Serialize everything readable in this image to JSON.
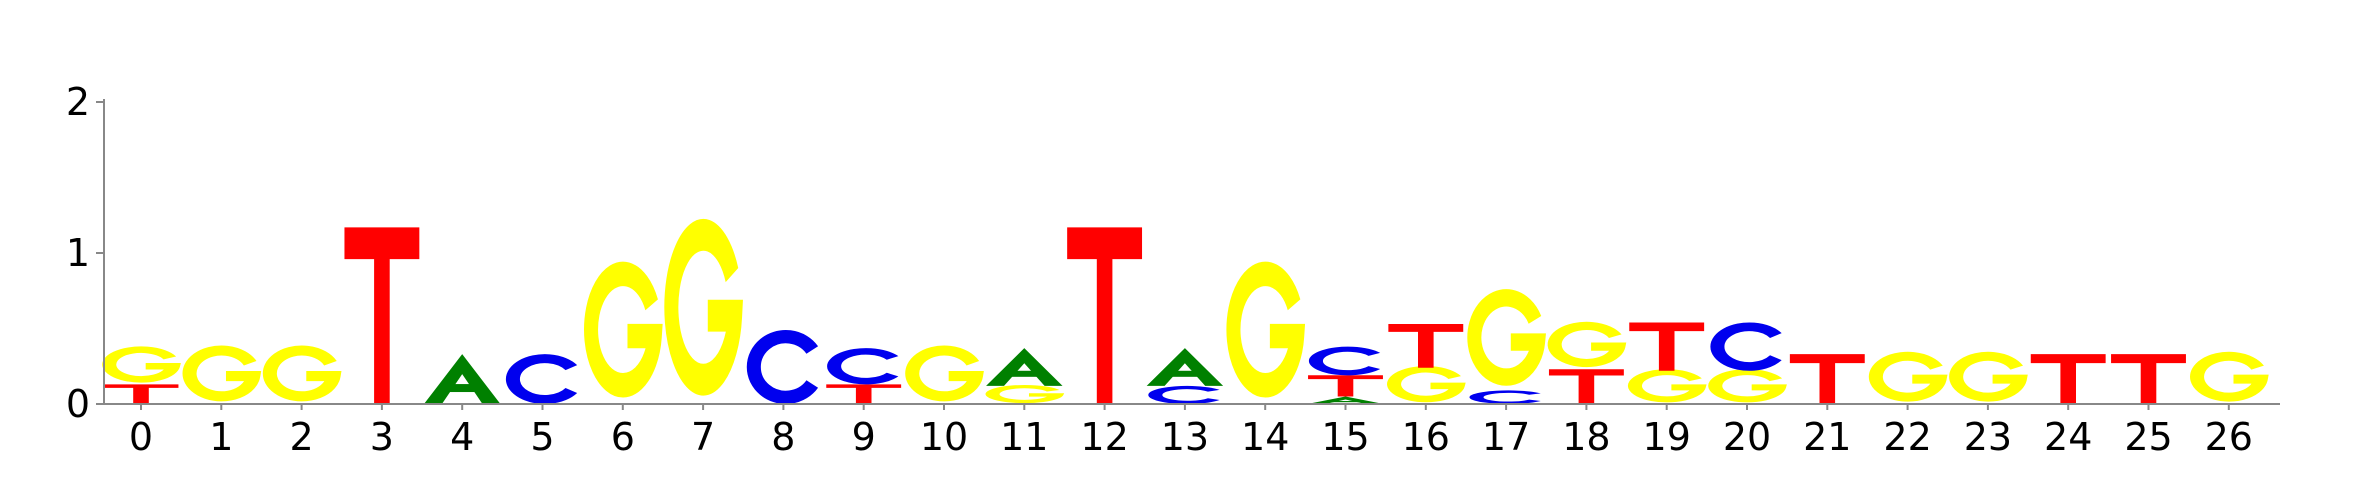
{
  "chart_data": {
    "type": "sequence-logo",
    "title": "",
    "xlabel": "",
    "ylabel": "",
    "ylim": [
      0,
      2
    ],
    "y_ticks": [
      "0",
      "1",
      "2"
    ],
    "x_ticks": [
      "0",
      "1",
      "2",
      "3",
      "4",
      "5",
      "6",
      "7",
      "8",
      "9",
      "10",
      "11",
      "12",
      "13",
      "14",
      "15",
      "16",
      "17",
      "18",
      "19",
      "20",
      "21",
      "22",
      "23",
      "24",
      "25",
      "26"
    ],
    "colors": {
      "A": "#008000",
      "C": "#0000ee",
      "G": "#ffff00",
      "T": "#ff0000"
    },
    "positions": [
      {
        "pos": 0,
        "letters": [
          {
            "base": "T",
            "height": 0.13
          },
          {
            "base": "G",
            "height": 0.24
          }
        ]
      },
      {
        "pos": 1,
        "letters": [
          {
            "base": "G",
            "height": 0.37
          }
        ]
      },
      {
        "pos": 2,
        "letters": [
          {
            "base": "G",
            "height": 0.37
          }
        ]
      },
      {
        "pos": 3,
        "letters": [
          {
            "base": "T",
            "height": 1.17
          }
        ]
      },
      {
        "pos": 4,
        "letters": [
          {
            "base": "A",
            "height": 0.33
          }
        ]
      },
      {
        "pos": 5,
        "letters": [
          {
            "base": "C",
            "height": 0.33
          }
        ]
      },
      {
        "pos": 6,
        "letters": [
          {
            "base": "G",
            "height": 0.9
          }
        ]
      },
      {
        "pos": 7,
        "letters": [
          {
            "base": "G",
            "height": 1.17
          }
        ]
      },
      {
        "pos": 8,
        "letters": [
          {
            "base": "C",
            "height": 0.49
          }
        ]
      },
      {
        "pos": 9,
        "letters": [
          {
            "base": "T",
            "height": 0.13
          },
          {
            "base": "C",
            "height": 0.24
          }
        ]
      },
      {
        "pos": 10,
        "letters": [
          {
            "base": "G",
            "height": 0.37
          }
        ]
      },
      {
        "pos": 11,
        "letters": [
          {
            "base": "G",
            "height": 0.12
          },
          {
            "base": "A",
            "height": 0.25
          }
        ]
      },
      {
        "pos": 12,
        "letters": [
          {
            "base": "T",
            "height": 1.17
          }
        ]
      },
      {
        "pos": 13,
        "letters": [
          {
            "base": "C",
            "height": 0.12
          },
          {
            "base": "A",
            "height": 0.25
          }
        ]
      },
      {
        "pos": 14,
        "letters": [
          {
            "base": "G",
            "height": 0.9
          }
        ]
      },
      {
        "pos": 15,
        "letters": [
          {
            "base": "A",
            "height": 0.05
          },
          {
            "base": "T",
            "height": 0.14
          },
          {
            "base": "C",
            "height": 0.19
          }
        ]
      },
      {
        "pos": 16,
        "letters": [
          {
            "base": "G",
            "height": 0.24
          },
          {
            "base": "T",
            "height": 0.29
          }
        ]
      },
      {
        "pos": 17,
        "letters": [
          {
            "base": "C",
            "height": 0.09
          },
          {
            "base": "G",
            "height": 0.64
          }
        ]
      },
      {
        "pos": 18,
        "letters": [
          {
            "base": "T",
            "height": 0.23
          },
          {
            "base": "G",
            "height": 0.3
          }
        ]
      },
      {
        "pos": 19,
        "letters": [
          {
            "base": "G",
            "height": 0.22
          },
          {
            "base": "T",
            "height": 0.32
          }
        ]
      },
      {
        "pos": 20,
        "letters": [
          {
            "base": "G",
            "height": 0.22
          },
          {
            "base": "C",
            "height": 0.32
          }
        ]
      },
      {
        "pos": 21,
        "letters": [
          {
            "base": "T",
            "height": 0.33
          }
        ]
      },
      {
        "pos": 22,
        "letters": [
          {
            "base": "G",
            "height": 0.33
          }
        ]
      },
      {
        "pos": 23,
        "letters": [
          {
            "base": "G",
            "height": 0.33
          }
        ]
      },
      {
        "pos": 24,
        "letters": [
          {
            "base": "T",
            "height": 0.33
          }
        ]
      },
      {
        "pos": 25,
        "letters": [
          {
            "base": "T",
            "height": 0.33
          }
        ]
      },
      {
        "pos": 26,
        "letters": [
          {
            "base": "G",
            "height": 0.33
          }
        ]
      }
    ]
  }
}
